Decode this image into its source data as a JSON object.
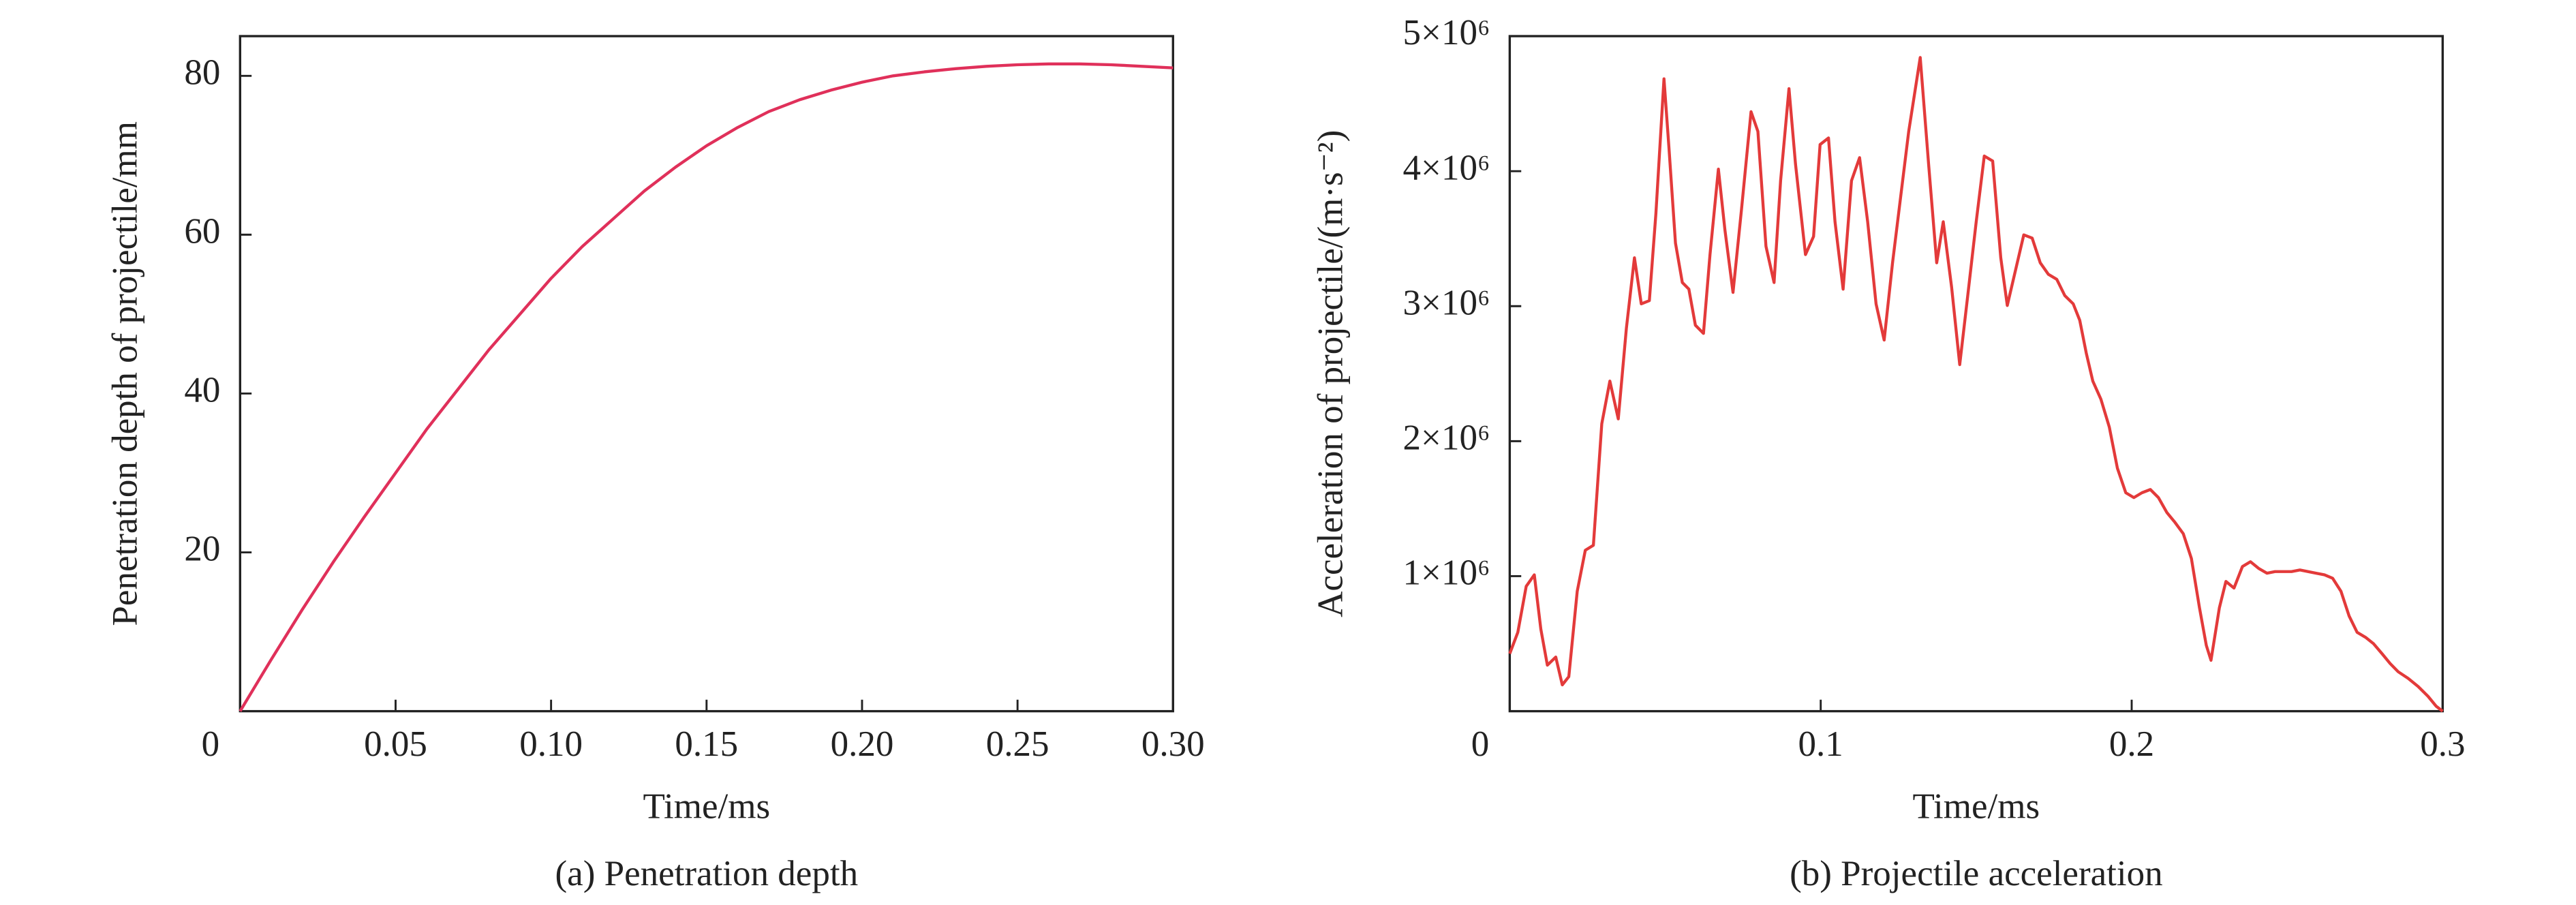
{
  "chart_data": [
    {
      "type": "line",
      "xlabel": "Time/ms",
      "ylabel": "Penetration depth of projectile/mm",
      "caption": "(a) Penetration depth",
      "color": "#e0305a",
      "xlim": [
        0,
        0.3
      ],
      "ylim": [
        0,
        85
      ],
      "xticks": [
        0,
        0.05,
        {
          "value": 0.1,
          "label": "0.10"
        },
        0.15,
        {
          "value": 0.2,
          "label": "0.20"
        },
        0.25,
        {
          "value": 0.3,
          "label": "0.30"
        }
      ],
      "yticks": [
        20,
        40,
        60,
        80
      ],
      "x": [
        0,
        0.01,
        0.02,
        0.03,
        0.04,
        0.05,
        0.06,
        0.07,
        0.08,
        0.09,
        0.1,
        0.11,
        0.12,
        0.13,
        0.14,
        0.15,
        0.16,
        0.17,
        0.18,
        0.19,
        0.2,
        0.21,
        0.22,
        0.23,
        0.24,
        0.25,
        0.26,
        0.27,
        0.28,
        0.29,
        0.3
      ],
      "values": [
        0,
        6.5,
        12.8,
        18.8,
        24.5,
        30,
        35.5,
        40.5,
        45.5,
        50,
        54.5,
        58.5,
        62,
        65.5,
        68.5,
        71.2,
        73.5,
        75.5,
        77,
        78.2,
        79.2,
        80,
        80.5,
        80.9,
        81.2,
        81.4,
        81.5,
        81.5,
        81.4,
        81.2,
        81
      ]
    },
    {
      "type": "line",
      "xlabel": "Time/ms",
      "ylabel": "Acceleration of projectile/(m·s⁻²)",
      "caption": "(b) Projectile acceleration",
      "color": "#e33a3a",
      "xlim": [
        0,
        0.3
      ],
      "ylim": [
        0,
        5000000
      ],
      "xticks": [
        0,
        0.1,
        0.2,
        0.3
      ],
      "yticks": [
        {
          "value": 1000000,
          "label": "1×10⁶"
        },
        {
          "value": 2000000,
          "label": "2×10⁶"
        },
        {
          "value": 3000000,
          "label": "3×10⁶"
        },
        {
          "value": 4000000,
          "label": "4×10⁶"
        },
        {
          "value": 5000000,
          "label": "5×10⁶"
        }
      ],
      "x": [
        0,
        0.0026,
        0.0053,
        0.0079,
        0.01,
        0.0121,
        0.0148,
        0.0169,
        0.019,
        0.0217,
        0.0243,
        0.0269,
        0.0296,
        0.0322,
        0.0349,
        0.0375,
        0.0401,
        0.0423,
        0.0449,
        0.047,
        0.0496,
        0.0512,
        0.0533,
        0.0555,
        0.0576,
        0.0597,
        0.0623,
        0.0644,
        0.0671,
        0.0692,
        0.0718,
        0.0745,
        0.0776,
        0.0798,
        0.0824,
        0.085,
        0.0871,
        0.0898,
        0.0919,
        0.0951,
        0.0977,
        0.0998,
        0.1025,
        0.1046,
        0.1072,
        0.1099,
        0.1125,
        0.1151,
        0.1178,
        0.1204,
        0.1231,
        0.1257,
        0.1283,
        0.132,
        0.1347,
        0.1373,
        0.1394,
        0.1421,
        0.1447,
        0.1474,
        0.15,
        0.1526,
        0.1553,
        0.1579,
        0.16,
        0.1632,
        0.1653,
        0.168,
        0.1706,
        0.1732,
        0.1759,
        0.1785,
        0.1812,
        0.1833,
        0.1854,
        0.1875,
        0.1901,
        0.1928,
        0.1954,
        0.1981,
        0.2007,
        0.2033,
        0.206,
        0.2086,
        0.2113,
        0.2139,
        0.2166,
        0.2192,
        0.2218,
        0.224,
        0.2255,
        0.2282,
        0.2303,
        0.2329,
        0.2356,
        0.2382,
        0.2408,
        0.2435,
        0.2461,
        0.2488,
        0.2514,
        0.2541,
        0.2567,
        0.2593,
        0.262,
        0.2646,
        0.2673,
        0.2699,
        0.2725,
        0.2752,
        0.2778,
        0.2805,
        0.2831,
        0.2857,
        0.2889,
        0.2921,
        0.2953,
        0.2979,
        0.3
      ],
      "values": [
        426000,
        584000,
        925000,
        1010000,
        608000,
        341000,
        401000,
        195000,
        256000,
        888000,
        1192000,
        1229000,
        2129000,
        2445000,
        2165000,
        2834000,
        3358000,
        3017000,
        3041000,
        3686000,
        4684000,
        4173000,
        3467000,
        3175000,
        3126000,
        2859000,
        2798000,
        3382000,
        4015000,
        3564000,
        3102000,
        3710000,
        4440000,
        4294000,
        3443000,
        3175000,
        3929000,
        4611000,
        4051000,
        3382000,
        3516000,
        4197000,
        4246000,
        3625000,
        3126000,
        3929000,
        4100000,
        3625000,
        3017000,
        2749000,
        3321000,
        3808000,
        4294000,
        4842000,
        4051000,
        3321000,
        3625000,
        3139000,
        2567000,
        3102000,
        3625000,
        4112000,
        4075000,
        3358000,
        3005000,
        3321000,
        3528000,
        3504000,
        3321000,
        3236000,
        3199000,
        3078000,
        3017000,
        2895000,
        2652000,
        2445000,
        2311000,
        2105000,
        1800000,
        1618000,
        1582000,
        1618000,
        1642000,
        1582000,
        1472000,
        1399000,
        1314000,
        1131000,
        766000,
        487000,
        377000,
        766000,
        961000,
        912000,
        1071000,
        1107000,
        1058000,
        1022000,
        1034000,
        1034000,
        1034000,
        1046000,
        1034000,
        1022000,
        1010000,
        985000,
        888000,
        706000,
        584000,
        547000,
        499000,
        426000,
        353000,
        292000,
        243000,
        183000,
        110000,
        37000,
        0
      ]
    }
  ]
}
